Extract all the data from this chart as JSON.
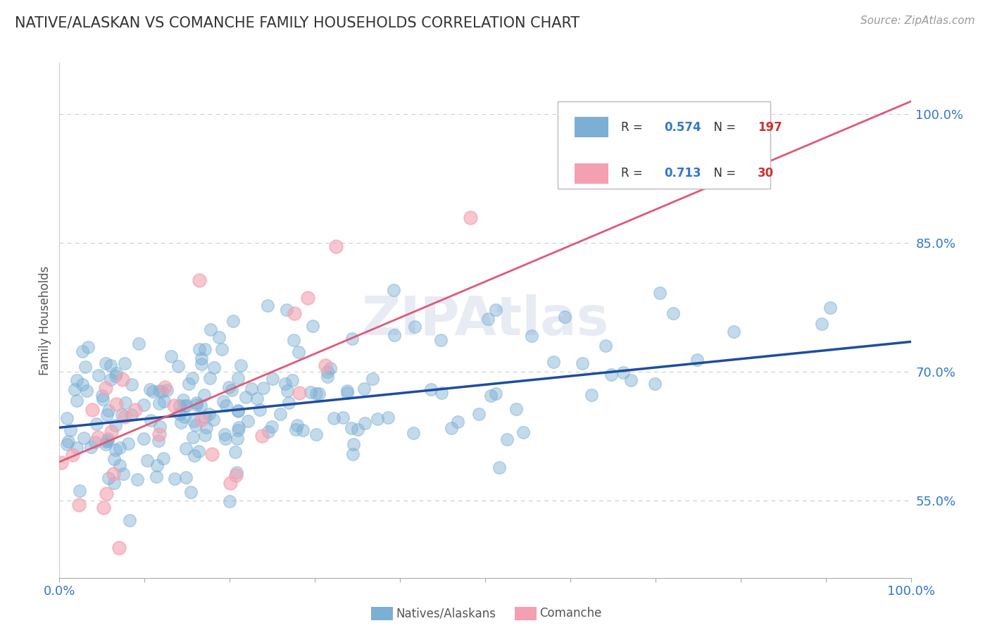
{
  "title": "NATIVE/ALASKAN VS COMANCHE FAMILY HOUSEHOLDS CORRELATION CHART",
  "source": "Source: ZipAtlas.com",
  "ylabel": "Family Households",
  "blue_label": "Natives/Alaskans",
  "pink_label": "Comanche",
  "blue_R": 0.574,
  "blue_N": 197,
  "pink_R": 0.713,
  "pink_N": 30,
  "xlim": [
    0.0,
    1.0
  ],
  "ylim": [
    0.46,
    1.06
  ],
  "yticks": [
    0.55,
    0.7,
    0.85,
    1.0
  ],
  "ytick_labels": [
    "55.0%",
    "70.0%",
    "85.0%",
    "100.0%"
  ],
  "xtick_labels": [
    "0.0%",
    "100.0%"
  ],
  "grid_color": "#cccccc",
  "background_color": "#ffffff",
  "blue_dot_color": "#7bafd4",
  "pink_dot_color": "#f4a0b0",
  "blue_line_color": "#1e4d9e",
  "pink_line_color": "#e05878",
  "watermark": "ZIPAtlas",
  "blue_scatter_seed": 42,
  "pink_scatter_seed": 123,
  "legend_R_color": "#3377cc",
  "legend_N_color": "#cc3333",
  "blue_line_intercept": 0.635,
  "blue_line_slope": 0.1,
  "pink_line_intercept": 0.595,
  "pink_line_slope": 0.42
}
